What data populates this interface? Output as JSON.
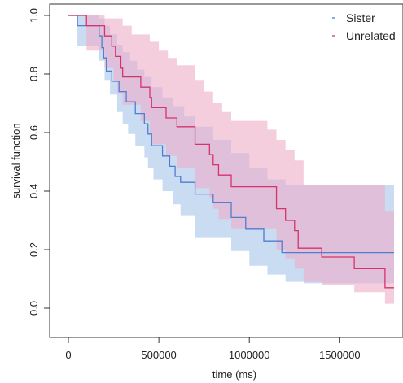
{
  "chart_data": {
    "type": "line",
    "subtype": "kaplan-meier step curves with confidence bands",
    "title": "",
    "xlabel": "time (ms)",
    "ylabel": "survival function",
    "xlim": [
      0,
      1800000
    ],
    "ylim": [
      0,
      1
    ],
    "x_ticks": [
      0,
      500000,
      1000000,
      1500000
    ],
    "x_tick_labels": [
      "0",
      "500000",
      "1000000",
      "1500000"
    ],
    "y_ticks": [
      0,
      0.2,
      0.4,
      0.6,
      0.8,
      1
    ],
    "y_tick_labels": [
      "0.0",
      "0.2",
      "0.4",
      "0.6",
      "0.8",
      "1.0"
    ],
    "grid": false,
    "legend": {
      "position": "top-right",
      "entries": [
        "Sister",
        "Unrelated"
      ]
    },
    "series": [
      {
        "name": "Sister",
        "color": "#4f7ed0",
        "band_color": "#aac6ea",
        "x_end": 1800000,
        "steps": [
          [
            0,
            1.0
          ],
          [
            50000,
            0.965
          ],
          [
            170000,
            0.93
          ],
          [
            185000,
            0.89
          ],
          [
            195000,
            0.855
          ],
          [
            210000,
            0.81
          ],
          [
            240000,
            0.775
          ],
          [
            280000,
            0.74
          ],
          [
            320000,
            0.705
          ],
          [
            370000,
            0.665
          ],
          [
            420000,
            0.63
          ],
          [
            440000,
            0.595
          ],
          [
            460000,
            0.555
          ],
          [
            520000,
            0.52
          ],
          [
            560000,
            0.485
          ],
          [
            590000,
            0.45
          ],
          [
            620000,
            0.43
          ],
          [
            700000,
            0.39
          ],
          [
            800000,
            0.36
          ],
          [
            900000,
            0.31
          ],
          [
            980000,
            0.27
          ],
          [
            1080000,
            0.23
          ],
          [
            1180000,
            0.19
          ]
        ],
        "upper": [
          [
            0,
            1.0
          ],
          [
            170000,
            0.99
          ],
          [
            200000,
            0.965
          ],
          [
            230000,
            0.935
          ],
          [
            270000,
            0.9
          ],
          [
            300000,
            0.875
          ],
          [
            340000,
            0.845
          ],
          [
            380000,
            0.815
          ],
          [
            420000,
            0.79
          ],
          [
            460000,
            0.755
          ],
          [
            520000,
            0.72
          ],
          [
            580000,
            0.69
          ],
          [
            640000,
            0.655
          ],
          [
            700000,
            0.62
          ],
          [
            800000,
            0.575
          ],
          [
            900000,
            0.53
          ],
          [
            1000000,
            0.48
          ],
          [
            1100000,
            0.44
          ],
          [
            1200000,
            0.42
          ]
        ],
        "lower": [
          [
            0,
            1.0
          ],
          [
            50000,
            0.895
          ],
          [
            170000,
            0.845
          ],
          [
            200000,
            0.78
          ],
          [
            230000,
            0.73
          ],
          [
            270000,
            0.67
          ],
          [
            300000,
            0.63
          ],
          [
            330000,
            0.595
          ],
          [
            370000,
            0.555
          ],
          [
            420000,
            0.515
          ],
          [
            440000,
            0.48
          ],
          [
            470000,
            0.44
          ],
          [
            520000,
            0.4
          ],
          [
            580000,
            0.355
          ],
          [
            620000,
            0.315
          ],
          [
            700000,
            0.24
          ],
          [
            900000,
            0.195
          ],
          [
            1000000,
            0.145
          ],
          [
            1100000,
            0.115
          ],
          [
            1200000,
            0.09
          ],
          [
            1300000,
            0.085
          ]
        ]
      },
      {
        "name": "Unrelated",
        "color": "#d6336c",
        "band_color": "#eeaac6",
        "x_end": 1800000,
        "steps": [
          [
            0,
            1.0
          ],
          [
            100000,
            0.965
          ],
          [
            200000,
            0.93
          ],
          [
            240000,
            0.895
          ],
          [
            260000,
            0.86
          ],
          [
            290000,
            0.82
          ],
          [
            300000,
            0.79
          ],
          [
            400000,
            0.755
          ],
          [
            450000,
            0.72
          ],
          [
            460000,
            0.685
          ],
          [
            540000,
            0.65
          ],
          [
            600000,
            0.62
          ],
          [
            700000,
            0.56
          ],
          [
            780000,
            0.525
          ],
          [
            800000,
            0.49
          ],
          [
            830000,
            0.455
          ],
          [
            900000,
            0.415
          ],
          [
            1150000,
            0.34
          ],
          [
            1200000,
            0.3
          ],
          [
            1250000,
            0.265
          ],
          [
            1270000,
            0.205
          ],
          [
            1400000,
            0.175
          ],
          [
            1580000,
            0.135
          ],
          [
            1750000,
            0.07
          ]
        ],
        "upper": [
          [
            0,
            1.0
          ],
          [
            200000,
            0.99
          ],
          [
            300000,
            0.965
          ],
          [
            350000,
            0.935
          ],
          [
            450000,
            0.91
          ],
          [
            500000,
            0.88
          ],
          [
            550000,
            0.855
          ],
          [
            600000,
            0.83
          ],
          [
            700000,
            0.78
          ],
          [
            750000,
            0.74
          ],
          [
            800000,
            0.7
          ],
          [
            850000,
            0.67
          ],
          [
            900000,
            0.64
          ],
          [
            1100000,
            0.61
          ],
          [
            1150000,
            0.575
          ],
          [
            1200000,
            0.54
          ],
          [
            1250000,
            0.505
          ],
          [
            1300000,
            0.42
          ],
          [
            1700000,
            0.42
          ],
          [
            1750000,
            0.33
          ],
          [
            1800000,
            0.28
          ]
        ],
        "lower": [
          [
            0,
            1.0
          ],
          [
            100000,
            0.88
          ],
          [
            200000,
            0.82
          ],
          [
            250000,
            0.775
          ],
          [
            270000,
            0.735
          ],
          [
            300000,
            0.695
          ],
          [
            400000,
            0.64
          ],
          [
            450000,
            0.6
          ],
          [
            460000,
            0.56
          ],
          [
            540000,
            0.52
          ],
          [
            600000,
            0.48
          ],
          [
            700000,
            0.41
          ],
          [
            780000,
            0.375
          ],
          [
            800000,
            0.34
          ],
          [
            830000,
            0.305
          ],
          [
            900000,
            0.27
          ],
          [
            1150000,
            0.2
          ],
          [
            1200000,
            0.17
          ],
          [
            1250000,
            0.135
          ],
          [
            1300000,
            0.09
          ],
          [
            1400000,
            0.08
          ],
          [
            1580000,
            0.055
          ],
          [
            1750000,
            0.015
          ],
          [
            1800000,
            0.015
          ]
        ]
      }
    ]
  }
}
